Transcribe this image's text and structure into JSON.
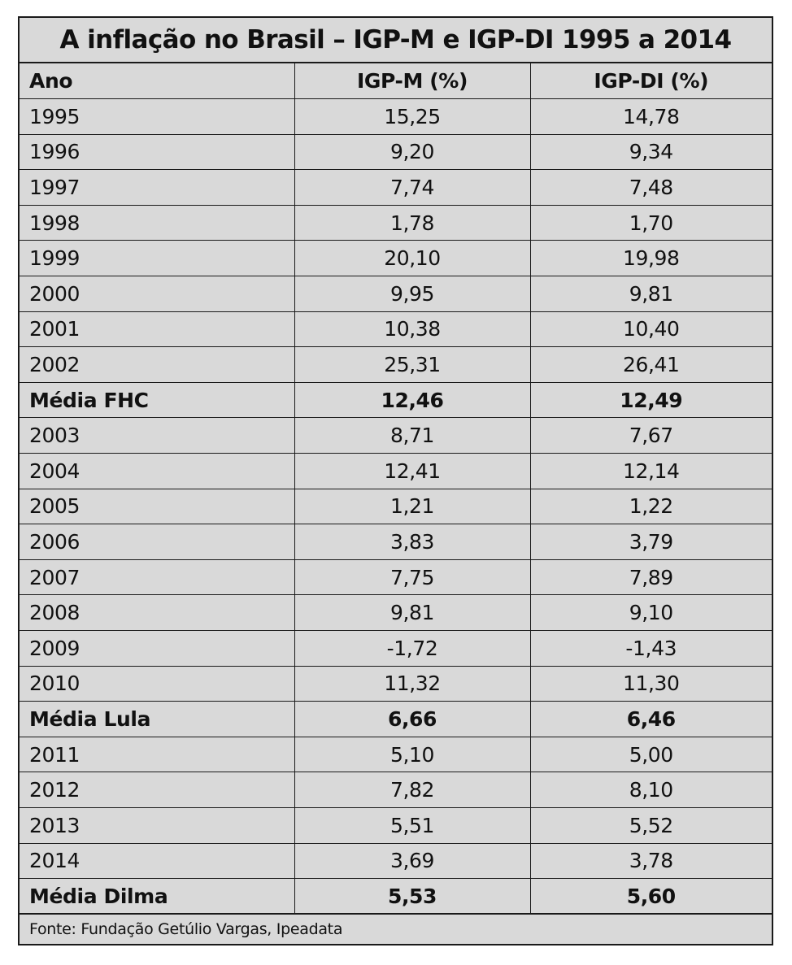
{
  "chart_data": {
    "type": "table",
    "title": "A inflação no Brasil – IGP-M e IGP-DI 1995 a 2014",
    "columns": [
      "Ano",
      "IGP-M (%)",
      "IGP-DI (%)"
    ],
    "rows": [
      {
        "label": "1995",
        "igpm": "15,25",
        "igpdi": "14,78",
        "average": false
      },
      {
        "label": "1996",
        "igpm": "9,20",
        "igpdi": "9,34",
        "average": false
      },
      {
        "label": "1997",
        "igpm": "7,74",
        "igpdi": "7,48",
        "average": false
      },
      {
        "label": "1998",
        "igpm": "1,78",
        "igpdi": "1,70",
        "average": false
      },
      {
        "label": "1999",
        "igpm": "20,10",
        "igpdi": "19,98",
        "average": false
      },
      {
        "label": "2000",
        "igpm": "9,95",
        "igpdi": "9,81",
        "average": false
      },
      {
        "label": "2001",
        "igpm": "10,38",
        "igpdi": "10,40",
        "average": false
      },
      {
        "label": "2002",
        "igpm": "25,31",
        "igpdi": "26,41",
        "average": false
      },
      {
        "label": "Média FHC",
        "igpm": "12,46",
        "igpdi": "12,49",
        "average": true
      },
      {
        "label": "2003",
        "igpm": "8,71",
        "igpdi": "7,67",
        "average": false
      },
      {
        "label": "2004",
        "igpm": "12,41",
        "igpdi": "12,14",
        "average": false
      },
      {
        "label": "2005",
        "igpm": "1,21",
        "igpdi": "1,22",
        "average": false
      },
      {
        "label": "2006",
        "igpm": "3,83",
        "igpdi": "3,79",
        "average": false
      },
      {
        "label": "2007",
        "igpm": "7,75",
        "igpdi": "7,89",
        "average": false
      },
      {
        "label": "2008",
        "igpm": "9,81",
        "igpdi": "9,10",
        "average": false
      },
      {
        "label": "2009",
        "igpm": "-1,72",
        "igpdi": "-1,43",
        "average": false
      },
      {
        "label": "2010",
        "igpm": "11,32",
        "igpdi": "11,30",
        "average": false
      },
      {
        "label": "Média Lula",
        "igpm": "6,66",
        "igpdi": "6,46",
        "average": true
      },
      {
        "label": "2011",
        "igpm": "5,10",
        "igpdi": "5,00",
        "average": false
      },
      {
        "label": "2012",
        "igpm": "7,82",
        "igpdi": "8,10",
        "average": false
      },
      {
        "label": "2013",
        "igpm": "5,51",
        "igpdi": "5,52",
        "average": false
      },
      {
        "label": "2014",
        "igpm": "3,69",
        "igpdi": "3,78",
        "average": false
      },
      {
        "label": "Média Dilma",
        "igpm": "5,53",
        "igpdi": "5,60",
        "average": true
      }
    ],
    "source": "Fonte: Fundação Getúlio Vargas, Ipeadata"
  }
}
